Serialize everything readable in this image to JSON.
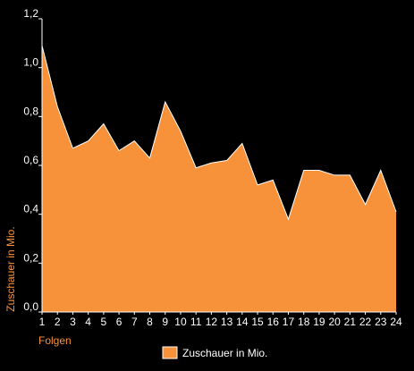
{
  "chart_data": {
    "type": "area",
    "x": [
      "1",
      "2",
      "3",
      "4",
      "5",
      "6",
      "7",
      "8",
      "9",
      "10",
      "11",
      "12",
      "13",
      "14",
      "15",
      "16",
      "17",
      "18",
      "19",
      "20",
      "21",
      "22",
      "23",
      "24"
    ],
    "series": [
      {
        "name": "Zuschauer in Mio.",
        "values": [
          1.09,
          0.84,
          0.67,
          0.7,
          0.77,
          0.66,
          0.7,
          0.63,
          0.86,
          0.74,
          0.59,
          0.61,
          0.62,
          0.69,
          0.52,
          0.54,
          0.38,
          0.58,
          0.58,
          0.56,
          0.56,
          0.44,
          0.58,
          0.41
        ]
      }
    ],
    "xlabel": "Folgen",
    "ylabel": "Zuschauer in Mio.",
    "ylim": [
      0,
      1.2
    ],
    "yticks": [
      "0,0",
      "0,2",
      "0,4",
      "0,6",
      "0,8",
      "1,0",
      "1,2"
    ],
    "grid": false,
    "legend_position": "bottom",
    "colors": {
      "background": "#000000",
      "area": "#f7923a",
      "area_stroke": "#ffffff",
      "axis": "#ffffff",
      "tick_text": "#ffffff",
      "axis_title": "#f7923a"
    }
  }
}
